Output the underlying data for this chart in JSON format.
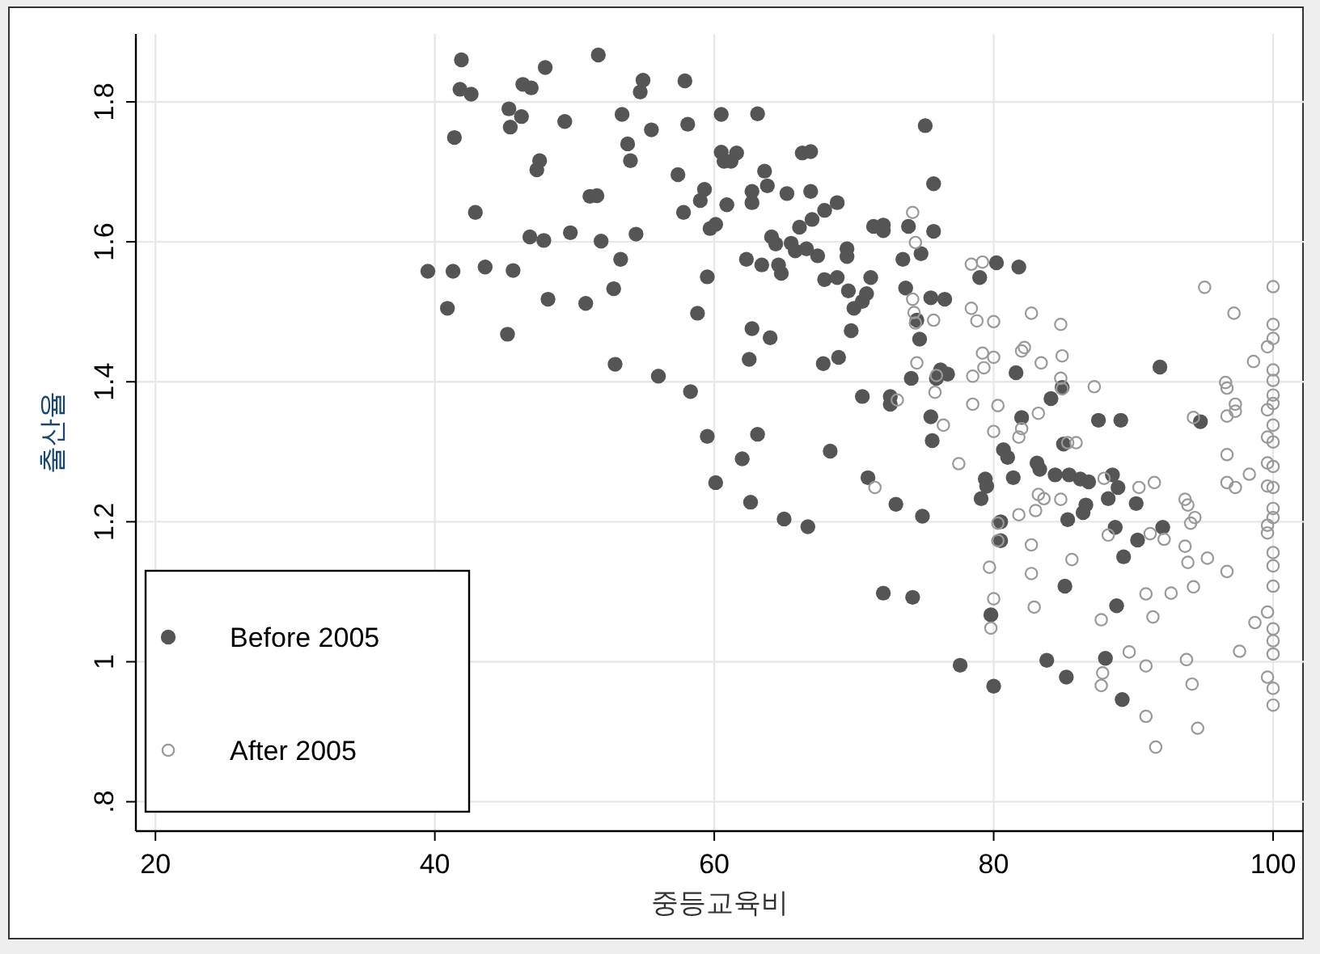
{
  "chart_data": {
    "type": "scatter",
    "xlabel": "중등교육비",
    "ylabel": "출산율",
    "xlim": [
      18.6,
      102.2
    ],
    "ylim": [
      0.758,
      1.897
    ],
    "xticks": [
      20,
      40,
      60,
      80,
      100
    ],
    "yticks": [
      {
        "value": 0.8,
        "label": ".8"
      },
      1,
      1.2,
      1.4,
      1.6,
      1.8
    ],
    "grid": true,
    "legend": "bottom left",
    "series": [
      {
        "name": "Before 2005",
        "color": "#555555",
        "marker": "circle",
        "x": [
          39.5,
          40.9,
          41.3,
          41.4,
          41.8,
          41.9,
          42.6,
          42.9,
          43.6,
          45.2,
          45.3,
          45.4,
          45.6,
          46.2,
          46.3,
          46.9,
          46.8,
          47.3,
          47.5,
          47.8,
          47.9,
          48.1,
          49.3,
          49.7,
          50.8,
          51.1,
          51.6,
          51.7,
          51.9,
          52.8,
          52.9,
          53.3,
          53.4,
          53.8,
          54.0,
          54.4,
          54.7,
          54.9,
          55.5,
          56.0,
          57.4,
          57.8,
          57.9,
          58.1,
          58.3,
          58.8,
          59.0,
          59.3,
          59.5,
          59.5,
          59.7,
          60.1,
          60.1,
          60.5,
          60.5,
          60.7,
          60.9,
          61.2,
          61.6,
          62.0,
          62.3,
          62.5,
          62.6,
          62.7,
          62.7,
          62.7,
          63.1,
          63.1,
          63.4,
          63.6,
          63.8,
          64.0,
          64.1,
          64.4,
          64.6,
          64.8,
          65.0,
          65.2,
          65.5,
          65.8,
          66.1,
          66.3,
          66.6,
          66.7,
          66.9,
          66.9,
          67.0,
          67.4,
          67.8,
          67.9,
          67.9,
          68.3,
          68.8,
          68.8,
          68.9,
          69.5,
          69.5,
          69.6,
          69.8,
          70.0,
          70.6,
          70.6,
          70.9,
          71.0,
          71.2,
          71.4,
          72.1,
          72.1,
          72.1,
          72.6,
          72.6,
          73.0,
          73.5,
          73.7,
          73.9,
          74.1,
          74.2,
          74.5,
          74.7,
          74.8,
          74.9,
          75.1,
          75.5,
          75.5,
          75.6,
          75.7,
          75.7,
          75.9,
          76.2,
          76.5,
          76.7,
          77.6,
          79.0,
          79.1,
          79.4,
          79.5,
          79.8,
          80.0,
          80.2,
          80.5,
          80.5,
          80.7,
          81.0,
          81.4,
          81.6,
          81.8,
          82.0,
          83.1,
          83.3,
          83.8,
          84.1,
          84.4,
          84.9,
          85.0,
          85.1,
          85.2,
          85.3,
          85.4,
          86.2,
          86.4,
          86.6,
          86.8,
          87.5,
          88.0,
          88.2,
          88.5,
          88.7,
          88.8,
          88.9,
          89.1,
          89.2,
          89.3,
          90.2,
          90.3,
          92.1,
          91.9,
          94.8
        ],
        "values": [
          1.558,
          1.505,
          1.558,
          1.749,
          1.818,
          1.86,
          1.811,
          1.642,
          1.564,
          1.468,
          1.79,
          1.764,
          1.559,
          1.779,
          1.825,
          1.82,
          1.607,
          1.703,
          1.716,
          1.602,
          1.849,
          1.518,
          1.772,
          1.613,
          1.512,
          1.665,
          1.666,
          1.867,
          1.601,
          1.533,
          1.425,
          1.575,
          1.782,
          1.74,
          1.716,
          1.611,
          1.814,
          1.831,
          1.76,
          1.408,
          1.696,
          1.642,
          1.83,
          1.768,
          1.386,
          1.498,
          1.659,
          1.675,
          1.55,
          1.322,
          1.619,
          1.625,
          1.256,
          1.782,
          1.728,
          1.715,
          1.653,
          1.715,
          1.727,
          1.29,
          1.575,
          1.432,
          1.228,
          1.476,
          1.672,
          1.656,
          1.783,
          1.325,
          1.567,
          1.701,
          1.68,
          1.463,
          1.607,
          1.597,
          1.567,
          1.555,
          1.204,
          1.669,
          1.598,
          1.587,
          1.621,
          1.727,
          1.59,
          1.193,
          1.729,
          1.672,
          1.632,
          1.58,
          1.426,
          1.645,
          1.546,
          1.301,
          1.656,
          1.549,
          1.435,
          1.59,
          1.579,
          1.53,
          1.473,
          1.505,
          1.379,
          1.515,
          1.526,
          1.263,
          1.549,
          1.622,
          1.624,
          1.098,
          1.616,
          1.379,
          1.368,
          1.225,
          1.575,
          1.534,
          1.622,
          1.405,
          1.092,
          1.488,
          1.461,
          1.583,
          1.208,
          1.766,
          1.52,
          1.35,
          1.316,
          1.683,
          1.615,
          1.405,
          1.417,
          1.518,
          1.411,
          0.995,
          1.549,
          1.233,
          1.261,
          1.251,
          1.067,
          0.965,
          1.57,
          1.173,
          1.2,
          1.303,
          1.292,
          1.263,
          1.413,
          1.564,
          1.349,
          1.284,
          1.275,
          1.002,
          1.376,
          1.267,
          1.392,
          1.311,
          1.108,
          0.978,
          1.203,
          1.267,
          1.261,
          1.213,
          1.224,
          1.257,
          1.345,
          1.005,
          1.233,
          1.267,
          1.192,
          1.08,
          1.249,
          1.345,
          0.946,
          1.15,
          1.226,
          1.174,
          1.192,
          1.421,
          1.343
        ]
      },
      {
        "name": "After 2005",
        "color": "#999999",
        "marker": "open circle",
        "x": [
          74.2,
          74.4,
          74.2,
          74.3,
          74.4,
          74.5,
          73.1,
          71.5,
          75.7,
          75.8,
          75.9,
          76.4,
          77.5,
          78.4,
          79.2,
          78.4,
          78.8,
          78.5,
          78.5,
          79.2,
          79.3,
          80.0,
          80.0,
          80.0,
          80.3,
          79.7,
          80.0,
          79.8,
          80.3,
          80.3,
          81.8,
          82.0,
          81.8,
          82.0,
          82.2,
          82.7,
          82.7,
          82.7,
          82.9,
          83.2,
          83.4,
          83.0,
          83.2,
          83.6,
          84.8,
          84.9,
          84.8,
          84.9,
          84.8,
          85.3,
          85.6,
          85.9,
          87.2,
          87.7,
          87.9,
          87.8,
          87.7,
          88.2,
          89.7,
          90.4,
          90.9,
          90.9,
          90.9,
          91.2,
          91.4,
          91.5,
          91.6,
          92.2,
          92.7,
          93.7,
          93.7,
          93.8,
          93.9,
          93.9,
          94.1,
          94.2,
          94.3,
          94.4,
          94.3,
          94.6,
          95.1,
          95.3,
          96.6,
          96.7,
          96.7,
          96.7,
          96.7,
          96.7,
          97.2,
          97.3,
          97.3,
          97.3,
          97.6,
          98.3,
          98.6,
          98.7,
          100,
          100,
          100,
          99.6,
          100,
          100,
          100,
          100,
          99.6,
          100,
          99.6,
          100,
          100,
          99.6,
          100,
          99.6,
          100,
          100,
          99.6,
          99.6,
          100,
          100,
          100,
          99.6,
          100,
          100,
          100,
          99.6,
          100,
          100
        ],
        "values": [
          1.642,
          1.599,
          1.518,
          1.499,
          1.484,
          1.427,
          1.374,
          1.249,
          1.488,
          1.385,
          1.409,
          1.338,
          1.283,
          1.568,
          1.571,
          1.505,
          1.487,
          1.408,
          1.368,
          1.441,
          1.42,
          1.486,
          1.435,
          1.329,
          1.366,
          1.135,
          1.09,
          1.048,
          1.198,
          1.173,
          1.321,
          1.333,
          1.21,
          1.444,
          1.449,
          1.498,
          1.167,
          1.126,
          1.078,
          1.355,
          1.427,
          1.216,
          1.239,
          1.233,
          1.482,
          1.437,
          1.405,
          1.39,
          1.232,
          1.313,
          1.146,
          1.313,
          1.393,
          1.06,
          1.262,
          0.984,
          0.966,
          1.181,
          1.014,
          1.249,
          1.097,
          0.994,
          0.922,
          1.183,
          1.064,
          1.256,
          0.878,
          1.175,
          1.098,
          1.165,
          1.232,
          1.003,
          1.224,
          1.142,
          1.198,
          0.968,
          1.107,
          1.206,
          1.349,
          0.905,
          1.535,
          1.148,
          1.399,
          1.391,
          1.351,
          1.296,
          1.256,
          1.129,
          1.498,
          1.368,
          1.358,
          1.249,
          1.015,
          1.268,
          1.429,
          1.056,
          1.536,
          1.482,
          1.462,
          1.45,
          1.417,
          1.402,
          1.381,
          1.369,
          1.36,
          1.338,
          1.321,
          1.314,
          1.279,
          1.284,
          1.249,
          1.251,
          1.219,
          1.206,
          1.195,
          1.184,
          1.156,
          1.137,
          1.108,
          1.071,
          1.047,
          1.03,
          1.011,
          0.978,
          0.962,
          0.938
        ]
      }
    ]
  }
}
